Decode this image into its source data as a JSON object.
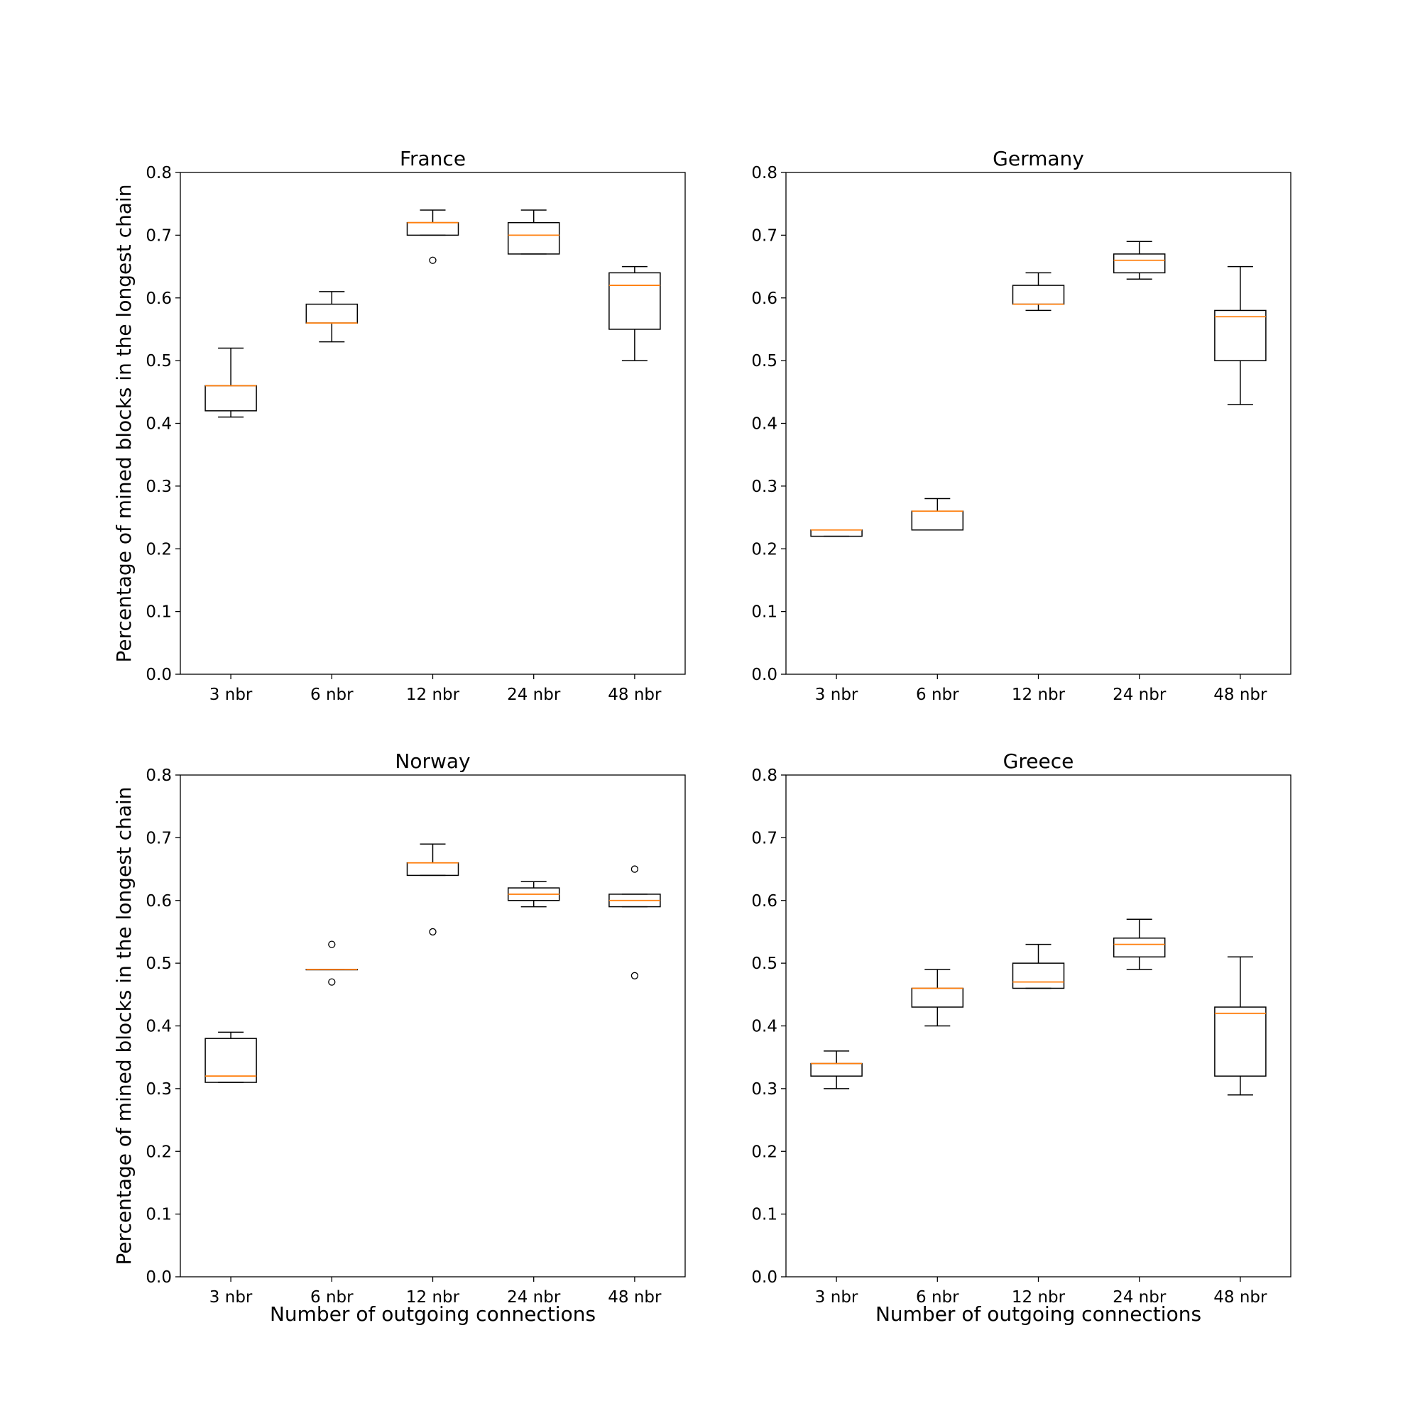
{
  "chart_data": [
    {
      "type": "box",
      "title": "France",
      "xlabel": "",
      "ylabel": "Percentage of mined blocks in the longest chain",
      "categories": [
        "3 nbr",
        "6 nbr",
        "12 nbr",
        "24 nbr",
        "48 nbr"
      ],
      "ylim": [
        0,
        0.8
      ],
      "yticks": [
        "0.0",
        "0.1",
        "0.2",
        "0.3",
        "0.4",
        "0.5",
        "0.6",
        "0.7",
        "0.8"
      ],
      "boxes": [
        {
          "whisker_low": 0.41,
          "q1": 0.42,
          "median": 0.46,
          "q3": 0.46,
          "whisker_high": 0.52,
          "outliers": []
        },
        {
          "whisker_low": 0.53,
          "q1": 0.56,
          "median": 0.56,
          "q3": 0.59,
          "whisker_high": 0.61,
          "outliers": []
        },
        {
          "whisker_low": 0.7,
          "q1": 0.7,
          "median": 0.72,
          "q3": 0.72,
          "whisker_high": 0.74,
          "outliers": [
            0.66
          ]
        },
        {
          "whisker_low": 0.67,
          "q1": 0.67,
          "median": 0.7,
          "q3": 0.72,
          "whisker_high": 0.74,
          "outliers": []
        },
        {
          "whisker_low": 0.5,
          "q1": 0.55,
          "median": 0.62,
          "q3": 0.64,
          "whisker_high": 0.65,
          "outliers": []
        }
      ]
    },
    {
      "type": "box",
      "title": "Germany",
      "xlabel": "",
      "ylabel": "",
      "categories": [
        "3 nbr",
        "6 nbr",
        "12 nbr",
        "24 nbr",
        "48 nbr"
      ],
      "ylim": [
        0,
        0.8
      ],
      "yticks": [
        "0.0",
        "0.1",
        "0.2",
        "0.3",
        "0.4",
        "0.5",
        "0.6",
        "0.7",
        "0.8"
      ],
      "boxes": [
        {
          "whisker_low": 0.22,
          "q1": 0.22,
          "median": 0.23,
          "q3": 0.23,
          "whisker_high": 0.23,
          "outliers": []
        },
        {
          "whisker_low": 0.23,
          "q1": 0.23,
          "median": 0.26,
          "q3": 0.26,
          "whisker_high": 0.28,
          "outliers": []
        },
        {
          "whisker_low": 0.58,
          "q1": 0.59,
          "median": 0.59,
          "q3": 0.62,
          "whisker_high": 0.64,
          "outliers": []
        },
        {
          "whisker_low": 0.63,
          "q1": 0.64,
          "median": 0.66,
          "q3": 0.67,
          "whisker_high": 0.69,
          "outliers": []
        },
        {
          "whisker_low": 0.43,
          "q1": 0.5,
          "median": 0.57,
          "q3": 0.58,
          "whisker_high": 0.65,
          "outliers": []
        }
      ]
    },
    {
      "type": "box",
      "title": "Norway",
      "xlabel": "Number of outgoing connections",
      "ylabel": "Percentage of mined blocks in the longest chain",
      "categories": [
        "3 nbr",
        "6 nbr",
        "12 nbr",
        "24 nbr",
        "48 nbr"
      ],
      "ylim": [
        0,
        0.8
      ],
      "yticks": [
        "0.0",
        "0.1",
        "0.2",
        "0.3",
        "0.4",
        "0.5",
        "0.6",
        "0.7",
        "0.8"
      ],
      "boxes": [
        {
          "whisker_low": 0.31,
          "q1": 0.31,
          "median": 0.32,
          "q3": 0.38,
          "whisker_high": 0.39,
          "outliers": []
        },
        {
          "whisker_low": 0.49,
          "q1": 0.49,
          "median": 0.49,
          "q3": 0.49,
          "whisker_high": 0.49,
          "outliers": [
            0.53,
            0.47
          ]
        },
        {
          "whisker_low": 0.64,
          "q1": 0.64,
          "median": 0.66,
          "q3": 0.66,
          "whisker_high": 0.69,
          "outliers": [
            0.55
          ]
        },
        {
          "whisker_low": 0.59,
          "q1": 0.6,
          "median": 0.61,
          "q3": 0.62,
          "whisker_high": 0.63,
          "outliers": []
        },
        {
          "whisker_low": 0.59,
          "q1": 0.59,
          "median": 0.6,
          "q3": 0.61,
          "whisker_high": 0.61,
          "outliers": [
            0.65,
            0.48
          ]
        }
      ]
    },
    {
      "type": "box",
      "title": "Greece",
      "xlabel": "Number of outgoing connections",
      "ylabel": "",
      "categories": [
        "3 nbr",
        "6 nbr",
        "12 nbr",
        "24 nbr",
        "48 nbr"
      ],
      "ylim": [
        0,
        0.8
      ],
      "yticks": [
        "0.0",
        "0.1",
        "0.2",
        "0.3",
        "0.4",
        "0.5",
        "0.6",
        "0.7",
        "0.8"
      ],
      "boxes": [
        {
          "whisker_low": 0.3,
          "q1": 0.32,
          "median": 0.34,
          "q3": 0.34,
          "whisker_high": 0.36,
          "outliers": []
        },
        {
          "whisker_low": 0.4,
          "q1": 0.43,
          "median": 0.46,
          "q3": 0.46,
          "whisker_high": 0.49,
          "outliers": []
        },
        {
          "whisker_low": 0.46,
          "q1": 0.46,
          "median": 0.47,
          "q3": 0.5,
          "whisker_high": 0.53,
          "outliers": []
        },
        {
          "whisker_low": 0.49,
          "q1": 0.51,
          "median": 0.53,
          "q3": 0.54,
          "whisker_high": 0.57,
          "outliers": []
        },
        {
          "whisker_low": 0.29,
          "q1": 0.32,
          "median": 0.42,
          "q3": 0.43,
          "whisker_high": 0.51,
          "outliers": []
        }
      ]
    }
  ],
  "colors": {
    "box": "#000000",
    "median": "#ff7f0e",
    "background": "#ffffff"
  }
}
